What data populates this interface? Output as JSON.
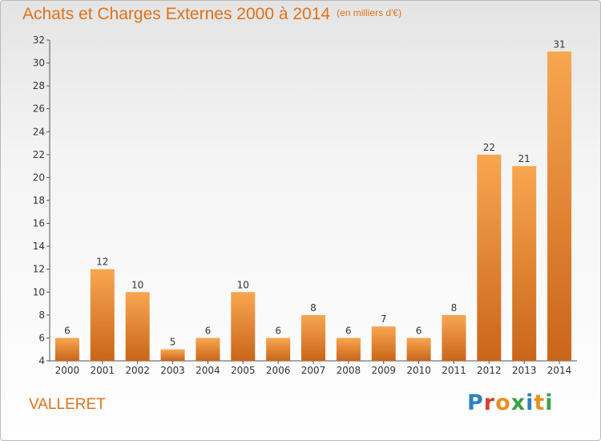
{
  "title": "Achats et Charges Externes 2000 à 2014",
  "unit": "(en milliers d'€)",
  "commune": "VALLERET",
  "logo": {
    "text": "Proxiti",
    "colors": [
      "#2f7fc1",
      "#d2432c",
      "#e8901e",
      "#3aa345",
      "#2f7fc1",
      "#e8901e",
      "#3aa345"
    ]
  },
  "chart_data": {
    "type": "bar",
    "title": "Achats et Charges Externes 2000 à 2014",
    "subtitle": "(en milliers d'€)",
    "categories": [
      "2000",
      "2001",
      "2002",
      "2003",
      "2004",
      "2005",
      "2006",
      "2007",
      "2008",
      "2009",
      "2010",
      "2011",
      "2012",
      "2013",
      "2014"
    ],
    "values": [
      6,
      12,
      10,
      5,
      6,
      10,
      6,
      8,
      6,
      7,
      6,
      8,
      22,
      21,
      31
    ],
    "ylim": [
      4,
      32
    ],
    "yticks": [
      4,
      6,
      8,
      10,
      12,
      14,
      16,
      18,
      20,
      22,
      24,
      26,
      28,
      30,
      32
    ],
    "grid": false,
    "bar_color_top": "#f8a650",
    "bar_color_bottom": "#c9651a"
  }
}
